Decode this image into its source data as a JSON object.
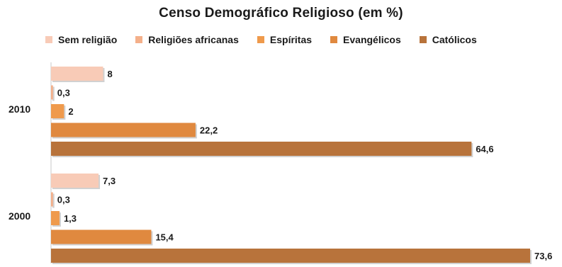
{
  "chart_data": {
    "type": "bar",
    "orientation": "horizontal",
    "title": "Censo Demográfico Religioso (em %)",
    "categories": [
      "2010",
      "2000"
    ],
    "series": [
      {
        "name": "Sem religião",
        "color": "#f8cbb7",
        "values": [
          8,
          7.3
        ],
        "labels": [
          "8",
          "7,3"
        ]
      },
      {
        "name": "Religiões africanas",
        "color": "#f4b08a",
        "values": [
          0.3,
          0.3
        ],
        "labels": [
          "0,3",
          "0,3"
        ]
      },
      {
        "name": "Espíritas",
        "color": "#ef9a4c",
        "values": [
          2,
          1.3
        ],
        "labels": [
          "2",
          "1,3"
        ]
      },
      {
        "name": "Evangélicos",
        "color": "#e0893f",
        "values": [
          22.2,
          15.4
        ],
        "labels": [
          "22,2",
          "15,4"
        ]
      },
      {
        "name": "Católicos",
        "color": "#b8733b",
        "values": [
          64.6,
          73.6
        ],
        "labels": [
          "64,6",
          "73,6"
        ]
      }
    ],
    "xlim": [
      0,
      73.6
    ],
    "legend_position": "top",
    "grid": false
  }
}
